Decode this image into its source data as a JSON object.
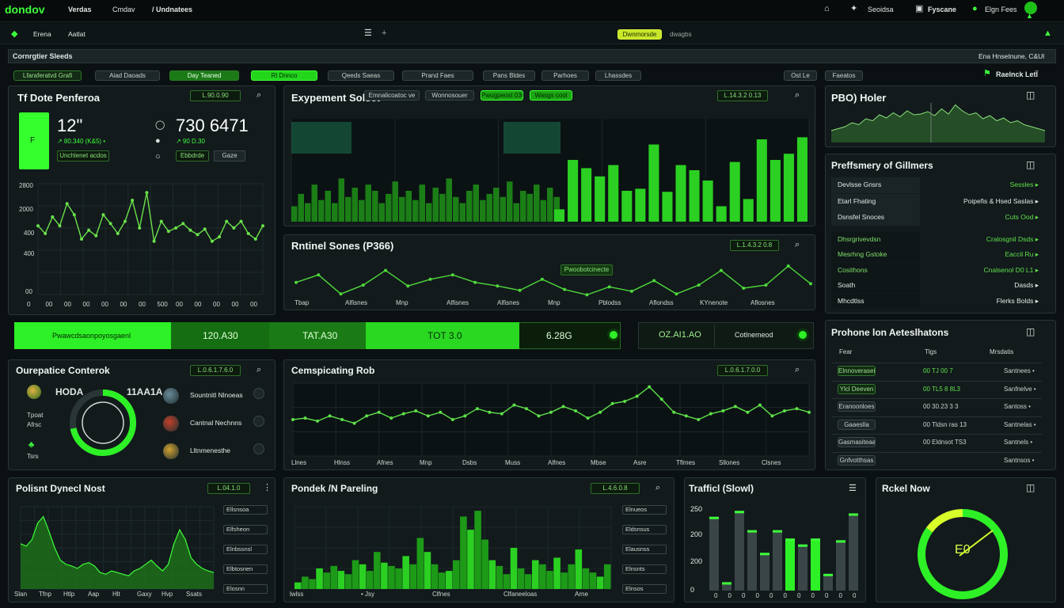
{
  "colors": {
    "accent": "#3dff3a",
    "accent_dark": "#1b8f16",
    "panel": "#121a1c",
    "bg": "#0b1112"
  },
  "topbar": {
    "logo": "dondov",
    "menu": [
      "Verdas",
      "Cmdav",
      "/ Undnatees"
    ],
    "right": [
      "Seoidsa",
      "Fyscane",
      "Elgn Fees"
    ]
  },
  "secondbar": {
    "left": [
      "Erena",
      "Aatlat"
    ],
    "center_badge": "Dwnmorsde",
    "center_text": "dwagbs"
  },
  "section_title": "Cornrgtier Sleeds",
  "section_right": "Ena Hnsetnune, C&Ul",
  "filters": [
    "Lfaraferatvd Grafi",
    "Aiad Daoads",
    "Day Teaned",
    "Rl Dnnco",
    "Qeeds Saeas",
    "Prand Faes",
    "Pans Bldes",
    "Parhoes",
    "Lhassdes",
    "Ost Le",
    "Faeatos"
  ],
  "filters_right": "Raelnck LetÏ",
  "p1": {
    "title": "Tf Dote Penferoa",
    "chip": "L.90.0.90",
    "big_left": "12\"",
    "big_left_sub": "↗ 80.340 (K&5) •",
    "big_left_btn": "Unchlenet acdos",
    "big_right": "730 6471",
    "big_right_sub": "↗ 90 D.30",
    "btn_a": "Ebbdrde",
    "btn_b": "Gaze",
    "yticks": [
      "2800",
      "2000",
      "400",
      "400",
      "00"
    ],
    "xticks": [
      "0",
      "00",
      "00",
      "00",
      "00",
      "00",
      "00",
      "500",
      "00",
      "00",
      "00",
      "00",
      "00"
    ],
    "line": [
      0.62,
      0.55,
      0.7,
      0.62,
      0.82,
      0.72,
      0.5,
      0.58,
      0.53,
      0.72,
      0.64,
      0.55,
      0.66,
      0.85,
      0.6,
      0.92,
      0.48,
      0.66,
      0.57,
      0.6,
      0.64,
      0.58,
      0.54,
      0.59,
      0.48,
      0.52,
      0.66,
      0.6,
      0.66,
      0.55,
      0.5,
      0.62
    ]
  },
  "p2": {
    "title": "Exypement Solsct",
    "tabs": [
      "Emnalicoatoc ve",
      "Wonnosouer",
      "Pwugpeost 030",
      "Wasgs cool"
    ],
    "chip": "L.14.3.2 0.13",
    "wave": [
      0.25,
      0.45,
      0.3,
      0.6,
      0.35,
      0.5,
      0.3,
      0.7,
      0.4,
      0.55,
      0.35,
      0.6,
      0.5,
      0.3,
      0.45,
      0.65,
      0.4,
      0.5,
      0.35,
      0.6,
      0.3,
      0.55,
      0.45,
      0.7,
      0.4,
      0.3,
      0.5,
      0.6,
      0.35,
      0.45,
      0.55,
      0.4,
      0.65,
      0.3,
      0.5,
      0.45,
      0.6,
      0.35,
      0.55,
      0.4
    ],
    "bars": [
      0.12,
      0.6,
      0.52,
      0.44,
      0.55,
      0.3,
      0.32,
      0.75,
      0.29,
      0.55,
      0.5,
      0.4,
      0.15,
      0.58,
      0.22,
      0.8,
      0.6,
      0.66,
      0.82
    ]
  },
  "p3": {
    "title": "Rntinel Sones (P366)",
    "chip": "L.1.4.3.2 0.8",
    "tag": "Pwoobotcinecte",
    "line": [
      0.38,
      0.55,
      0.12,
      0.32,
      0.65,
      0.3,
      0.45,
      0.55,
      0.38,
      0.3,
      0.2,
      0.45,
      0.22,
      0.1,
      0.28,
      0.18,
      0.42,
      0.12,
      0.32,
      0.65,
      0.25,
      0.32,
      0.75,
      0.35
    ],
    "xticks": [
      "Tbap",
      "Alfisnes",
      "Mnp",
      "Alfisnes",
      "Alfisnes",
      "Mnp",
      "Pblodss",
      "Aflondss",
      "KYnenote",
      "Aflosnes"
    ]
  },
  "p4": {
    "title": "PBO) Holer",
    "wave": [
      0.3,
      0.35,
      0.4,
      0.5,
      0.45,
      0.6,
      0.55,
      0.7,
      0.62,
      0.75,
      0.65,
      0.8,
      0.7,
      0.72,
      0.78,
      0.68,
      0.85,
      0.72,
      0.95,
      0.8,
      0.7,
      0.75,
      0.6,
      0.68,
      0.55,
      0.62,
      0.5,
      0.55,
      0.45,
      0.4,
      0.35,
      0.3
    ]
  },
  "p5": {
    "title": "Preffsmery of Gillmers",
    "rows": [
      {
        "l": "Devlsse Gnsrs",
        "r": "Sessles",
        "g": true
      },
      {
        "l": "Etarl Fhating",
        "r": "Poipefis & Hsed Saslas",
        "g": false
      },
      {
        "l": "Dsnsfel Snoces",
        "r": "Cuts Ood",
        "g": true
      },
      {
        "l": "Dhsrgrivevdsn",
        "r": "Cralosgnil Dsds",
        "g": true
      },
      {
        "l": "Mesrhng Gstoke",
        "r": "Eaccil Ru",
        "g": true
      },
      {
        "l": "Cosithons",
        "r": "Cnalsenol D0 L1",
        "g": true
      },
      {
        "l": "Soath",
        "r": "Dasds",
        "g": false
      },
      {
        "l": "Mhcdtlss",
        "r": "Flerks Bolds",
        "g": false
      }
    ]
  },
  "summary": {
    "label": "Pwawcdsaonpoyosgaenl",
    "v1": "120.A30",
    "v2": "TAT.A30",
    "v3": "TOT 3.0",
    "v4": "6.28G",
    "v5": "OZ.AI1.AO",
    "v6": "Cotlnemeod"
  },
  "p6": {
    "title": "Ourepatice Conterok",
    "chip": "L.0.6.1.7.6.0",
    "name": "HODA",
    "kpi": "11AA1A",
    "left_labels": [
      "Tpoat",
      "Afrsc",
      "Tsrs"
    ],
    "items": [
      "Sountnitl Nlnoeas",
      "Cantnal Nechnns",
      "Lltnmenesthe"
    ],
    "ring": 0.72
  },
  "p7": {
    "title": "Cemspicating Rob",
    "chip": "L.0.6.1.7.0.0",
    "line": [
      0.5,
      0.52,
      0.48,
      0.55,
      0.5,
      0.45,
      0.55,
      0.6,
      0.52,
      0.58,
      0.62,
      0.55,
      0.6,
      0.5,
      0.55,
      0.65,
      0.6,
      0.58,
      0.7,
      0.65,
      0.55,
      0.6,
      0.68,
      0.62,
      0.52,
      0.6,
      0.72,
      0.75,
      0.82,
      0.95,
      0.78,
      0.6,
      0.55,
      0.5,
      0.58,
      0.62,
      0.68,
      0.6,
      0.7,
      0.55,
      0.62,
      0.65,
      0.6
    ],
    "xticks": [
      "Llnes",
      "Hlnss",
      "Afnes",
      "Mnp",
      "Dsbs",
      "Muss",
      "Alfnes",
      "Mbse",
      "Asre",
      "Tflmes",
      "Sllones",
      "Clsnes"
    ]
  },
  "p8": {
    "title": "Prohone lon Aeteslhatons",
    "cols": [
      "Fear",
      "Tlgs",
      "Mrsdatis"
    ],
    "rows": [
      {
        "a": "Elnnoverasei",
        "b": "00 TJ 00 7",
        "c": "Santnees •",
        "on": true
      },
      {
        "a": "Ylcl Deeven",
        "b": "00 TL5 8 8L3",
        "c": "Sanfnelve •",
        "on": true
      },
      {
        "a": "Eranoonloes",
        "b": "00 30.23 3 3",
        "c": "Santoss •",
        "on": false
      },
      {
        "a": "Gaaeslla",
        "b": "00 Tldsn ras 13",
        "c": "Santnelas •",
        "on": false
      },
      {
        "a": "Gasmasiteaasl",
        "b": "00 Eldnsot TS3",
        "c": "Santnels •",
        "on": false
      },
      {
        "a": "Gnfvotthsas",
        "b": "",
        "c": "Santnsos •",
        "on": false
      }
    ]
  },
  "p9": {
    "title": "Polisnt Dynecl Nost",
    "chip": "L.04.1.0",
    "line": [
      0.55,
      0.52,
      0.6,
      0.8,
      0.88,
      0.7,
      0.5,
      0.35,
      0.3,
      0.28,
      0.25,
      0.3,
      0.32,
      0.28,
      0.2,
      0.18,
      0.22,
      0.2,
      0.18,
      0.16,
      0.22,
      0.25,
      0.3,
      0.35,
      0.28,
      0.22,
      0.3,
      0.55,
      0.72,
      0.6,
      0.38,
      0.3,
      0.25,
      0.22,
      0.2
    ],
    "xticks": [
      "Slan",
      "Tfnp",
      "Htlp",
      "Aap",
      "Hlt",
      "Gaxy",
      "Hvp",
      "Ssats"
    ],
    "side": [
      "Ellsnsoa",
      "Elfsheon",
      "Elnbssnsl",
      "Elbtosnen",
      "Elosnn"
    ]
  },
  "p10": {
    "title": "Pondek /N Pareling",
    "chip": "L.4.6.0.8",
    "bars": [
      0.08,
      0.15,
      0.12,
      0.25,
      0.2,
      0.28,
      0.22,
      0.18,
      0.35,
      0.3,
      0.22,
      0.45,
      0.32,
      0.28,
      0.25,
      0.4,
      0.3,
      0.62,
      0.45,
      0.3,
      0.2,
      0.22,
      0.35,
      0.88,
      0.72,
      0.95,
      0.6,
      0.35,
      0.28,
      0.18,
      0.5,
      0.25,
      0.18,
      0.35,
      0.3,
      0.22,
      0.38,
      0.2,
      0.3,
      0.48,
      0.25,
      0.2,
      0.15,
      0.3
    ],
    "xticks": [
      "lwlss",
      "• Jsy",
      "Clfnes",
      "Clfaneeloas",
      "Arne"
    ],
    "side": [
      "Elnueos",
      "Eldsnsus",
      "Elausnss",
      "Elnsnts",
      "Elnsos"
    ]
  },
  "p11": {
    "title": "Trafficl (Slowl)",
    "yticks": [
      "250",
      "200",
      "200",
      "0"
    ],
    "xticks": [
      "0",
      "0",
      "0",
      "0",
      "0",
      "0",
      "0",
      "0",
      "0",
      "0",
      "0"
    ],
    "bars": [
      0.88,
      0.1,
      0.95,
      0.72,
      0.45,
      0.72,
      0.62,
      0.55,
      0.62,
      0.2,
      0.6,
      0.92
    ],
    "accent_idx": [
      6,
      8
    ]
  },
  "p12": {
    "title": "Rckel Now",
    "gauge": 0.85,
    "gauge_label": "E0"
  }
}
